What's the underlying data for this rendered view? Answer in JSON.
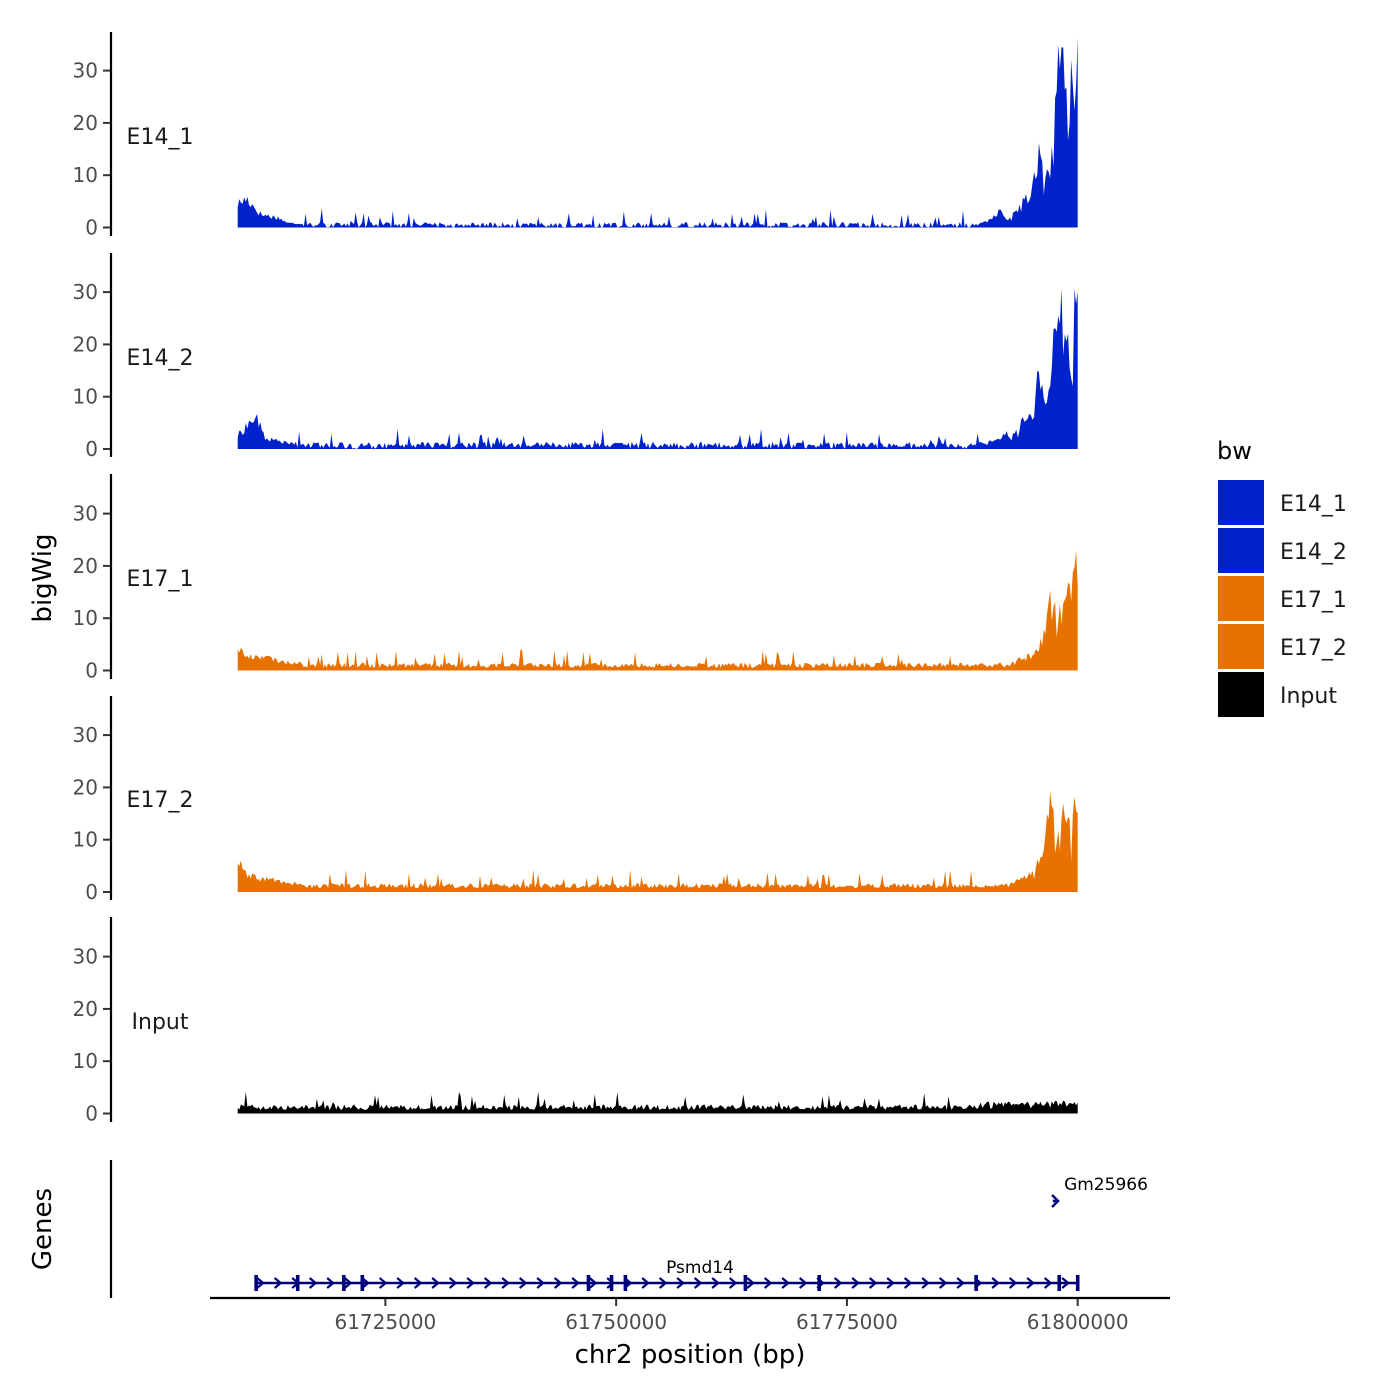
{
  "chart_data": {
    "type": "area",
    "ylabel": "bigWig",
    "xlabel": "chr2 position (bp)",
    "ylim": [
      0,
      37
    ],
    "yticks": [
      0,
      10,
      20,
      30
    ],
    "xlim": [
      61706000,
      61810000
    ],
    "xticks": [
      61725000,
      61750000,
      61775000,
      61800000
    ],
    "xtick_labels": [
      "61725000",
      "61750000",
      "61775000",
      "61800000"
    ],
    "data_range": [
      61709000,
      61800000
    ],
    "legend": {
      "title": "bw",
      "position": "right",
      "entries": [
        {
          "label": "E14_1",
          "color": "#0022cc"
        },
        {
          "label": "E14_2",
          "color": "#0022cc"
        },
        {
          "label": "E17_1",
          "color": "#e87200"
        },
        {
          "label": "E17_2",
          "color": "#e87200"
        },
        {
          "label": "Input",
          "color": "#000000"
        }
      ]
    },
    "series": [
      {
        "name": "E14_1",
        "color": "#0022cc",
        "baseline": 0.5,
        "noise": 1.1,
        "points": [
          [
            61709000,
            4.5
          ],
          [
            61710000,
            5.5
          ],
          [
            61711500,
            2.5
          ],
          [
            61713500,
            1.8
          ],
          [
            61714500,
            0.8
          ],
          [
            61716000,
            0.8
          ],
          [
            61790000,
            1.0
          ],
          [
            61791500,
            3.0
          ],
          [
            61792500,
            1.5
          ],
          [
            61793500,
            3.5
          ],
          [
            61795000,
            7.0
          ],
          [
            61795800,
            15.0
          ],
          [
            61796400,
            8.0
          ],
          [
            61797000,
            12.0
          ],
          [
            61797600,
            24.0
          ],
          [
            61798200,
            34.0
          ],
          [
            61798800,
            25.0
          ],
          [
            61799400,
            35.0
          ],
          [
            61800000,
            36.0
          ]
        ]
      },
      {
        "name": "E14_2",
        "color": "#0022cc",
        "baseline": 0.8,
        "noise": 1.2,
        "points": [
          [
            61709000,
            2.5
          ],
          [
            61710000,
            4.5
          ],
          [
            61711000,
            6.0
          ],
          [
            61712000,
            2.0
          ],
          [
            61713500,
            1.5
          ],
          [
            61715000,
            1.0
          ],
          [
            61790000,
            1.2
          ],
          [
            61792000,
            2.5
          ],
          [
            61793500,
            4.0
          ],
          [
            61795000,
            6.5
          ],
          [
            61795800,
            14.0
          ],
          [
            61796400,
            7.0
          ],
          [
            61797000,
            13.0
          ],
          [
            61797600,
            22.0
          ],
          [
            61798200,
            30.0
          ],
          [
            61798800,
            21.0
          ],
          [
            61799400,
            22.0
          ],
          [
            61800000,
            32.0
          ]
        ]
      },
      {
        "name": "E17_1",
        "color": "#e87200",
        "baseline": 1.0,
        "noise": 1.0,
        "points": [
          [
            61709000,
            4.5
          ],
          [
            61710000,
            2.5
          ],
          [
            61711500,
            2.8
          ],
          [
            61713000,
            2.0
          ],
          [
            61714500,
            1.5
          ],
          [
            61791000,
            1.2
          ],
          [
            61793000,
            1.6
          ],
          [
            61795000,
            3.0
          ],
          [
            61796000,
            5.0
          ],
          [
            61797000,
            13.0
          ],
          [
            61797800,
            11.0
          ],
          [
            61798500,
            14.0
          ],
          [
            61799300,
            17.0
          ],
          [
            61800000,
            19.0
          ]
        ]
      },
      {
        "name": "E17_2",
        "color": "#e87200",
        "baseline": 1.2,
        "noise": 1.0,
        "points": [
          [
            61709000,
            6.0
          ],
          [
            61710000,
            3.0
          ],
          [
            61711500,
            2.5
          ],
          [
            61713000,
            2.3
          ],
          [
            61714500,
            1.6
          ],
          [
            61791000,
            1.2
          ],
          [
            61793000,
            1.6
          ],
          [
            61795000,
            3.5
          ],
          [
            61796000,
            6.0
          ],
          [
            61797000,
            16.0
          ],
          [
            61797800,
            10.0
          ],
          [
            61798500,
            15.0
          ],
          [
            61799300,
            13.0
          ],
          [
            61800000,
            20.0
          ]
        ]
      },
      {
        "name": "Input",
        "color": "#000000",
        "baseline": 1.2,
        "noise": 1.1,
        "points": [
          [
            61709000,
            1.0
          ],
          [
            61800000,
            2.0
          ]
        ]
      }
    ],
    "genes": {
      "title": "Genes",
      "items": [
        {
          "name": "Psmd14",
          "start": 61711000,
          "end": 61800000,
          "strand": "+",
          "exons": [
            61711000,
            61715500,
            61720500,
            61722500,
            61747000,
            61749500,
            61751000,
            61764000,
            61772000,
            61789000,
            61798000,
            61800000
          ]
        },
        {
          "name": "Gm25966",
          "start": 61797300,
          "end": 61797800,
          "strand": "+",
          "exons": []
        }
      ]
    }
  }
}
